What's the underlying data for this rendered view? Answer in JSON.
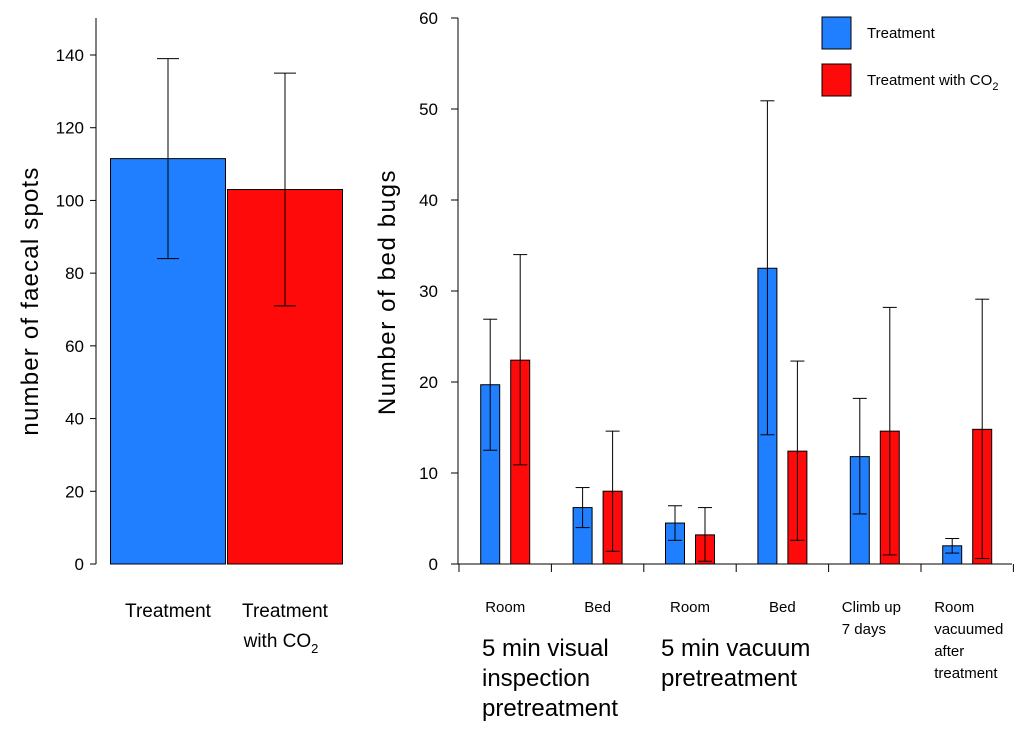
{
  "colors": {
    "treatment": "#1f7fff",
    "treatment_co2": "#ff0a0a",
    "axis": "#000000"
  },
  "chart_data": [
    {
      "type": "bar",
      "ylabel": "number of faecal spots",
      "xlabel": "",
      "ylim": [
        0,
        150
      ],
      "yticks": [
        0,
        20,
        40,
        60,
        80,
        100,
        120,
        140
      ],
      "bars": [
        {
          "label": "Treatment",
          "value": 111.5,
          "err_low": 84,
          "err_high": 139,
          "color_key": "treatment"
        },
        {
          "label": "Treatment with CO",
          "label_sub": "2",
          "value": 103,
          "err_low": 71,
          "err_high": 135,
          "color_key": "treatment_co2"
        }
      ]
    },
    {
      "type": "bar",
      "ylabel": "Number of bed bugs",
      "xlabel": "",
      "ylim": [
        0,
        60
      ],
      "yticks": [
        0,
        10,
        20,
        30,
        40,
        50,
        60
      ],
      "legend_position": "top-right",
      "series": [
        {
          "name": "Treatment",
          "color_key": "treatment",
          "values": [
            19.7,
            6.2,
            4.5,
            32.5,
            11.8,
            2.0
          ],
          "err_low": [
            12.5,
            4.0,
            2.6,
            14.2,
            5.5,
            1.2
          ],
          "err_high": [
            26.9,
            8.4,
            6.4,
            50.9,
            18.2,
            2.8
          ]
        },
        {
          "name": "Treatment with CO",
          "name_sub": "2",
          "color_key": "treatment_co2",
          "values": [
            22.4,
            8.0,
            3.2,
            12.4,
            14.6,
            14.8
          ],
          "err_low": [
            10.9,
            1.4,
            0.3,
            2.6,
            1.0,
            0.6
          ],
          "err_high": [
            34.0,
            14.6,
            6.2,
            22.3,
            28.2,
            29.1
          ]
        }
      ],
      "categories": [
        [
          "Room"
        ],
        [
          "Bed"
        ],
        [
          "Room"
        ],
        [
          "Bed"
        ],
        [
          "Climb up",
          "7 days"
        ],
        [
          "Room",
          "vacuumed",
          "after",
          "treatment"
        ]
      ],
      "group_labels": [
        [
          "5 min visual",
          "inspection",
          "pretreatment"
        ],
        [
          "5 min vacuum",
          "pretreatment"
        ]
      ]
    }
  ]
}
